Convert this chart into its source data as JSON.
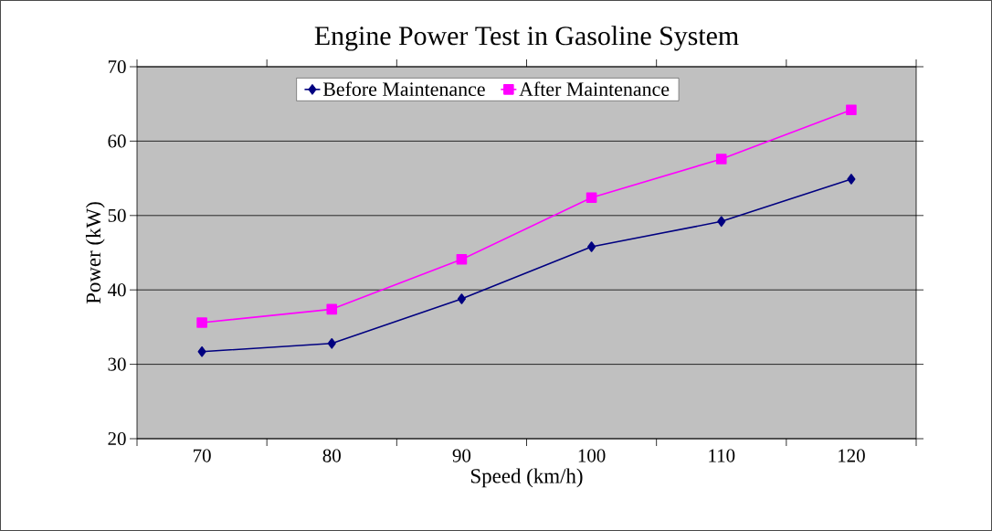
{
  "chart_data": {
    "type": "line",
    "title": "Engine Power Test in Gasoline System",
    "xlabel": "Speed (km/h)",
    "ylabel": "Power (kW)",
    "categories": [
      "70",
      "80",
      "90",
      "100",
      "110",
      "120"
    ],
    "series": [
      {
        "name": "Before Maintenance",
        "color": "#000080",
        "marker": "diamond",
        "values": [
          31.7,
          32.8,
          38.8,
          45.8,
          49.2,
          54.9
        ]
      },
      {
        "name": "After Maintenance",
        "color": "#ff00ff",
        "marker": "square",
        "values": [
          35.6,
          37.4,
          44.1,
          52.4,
          57.6,
          64.2
        ]
      }
    ],
    "ylim": [
      20,
      70
    ],
    "yticks": [
      20,
      30,
      40,
      50,
      60,
      70
    ],
    "grid": "y",
    "legend": "top"
  }
}
